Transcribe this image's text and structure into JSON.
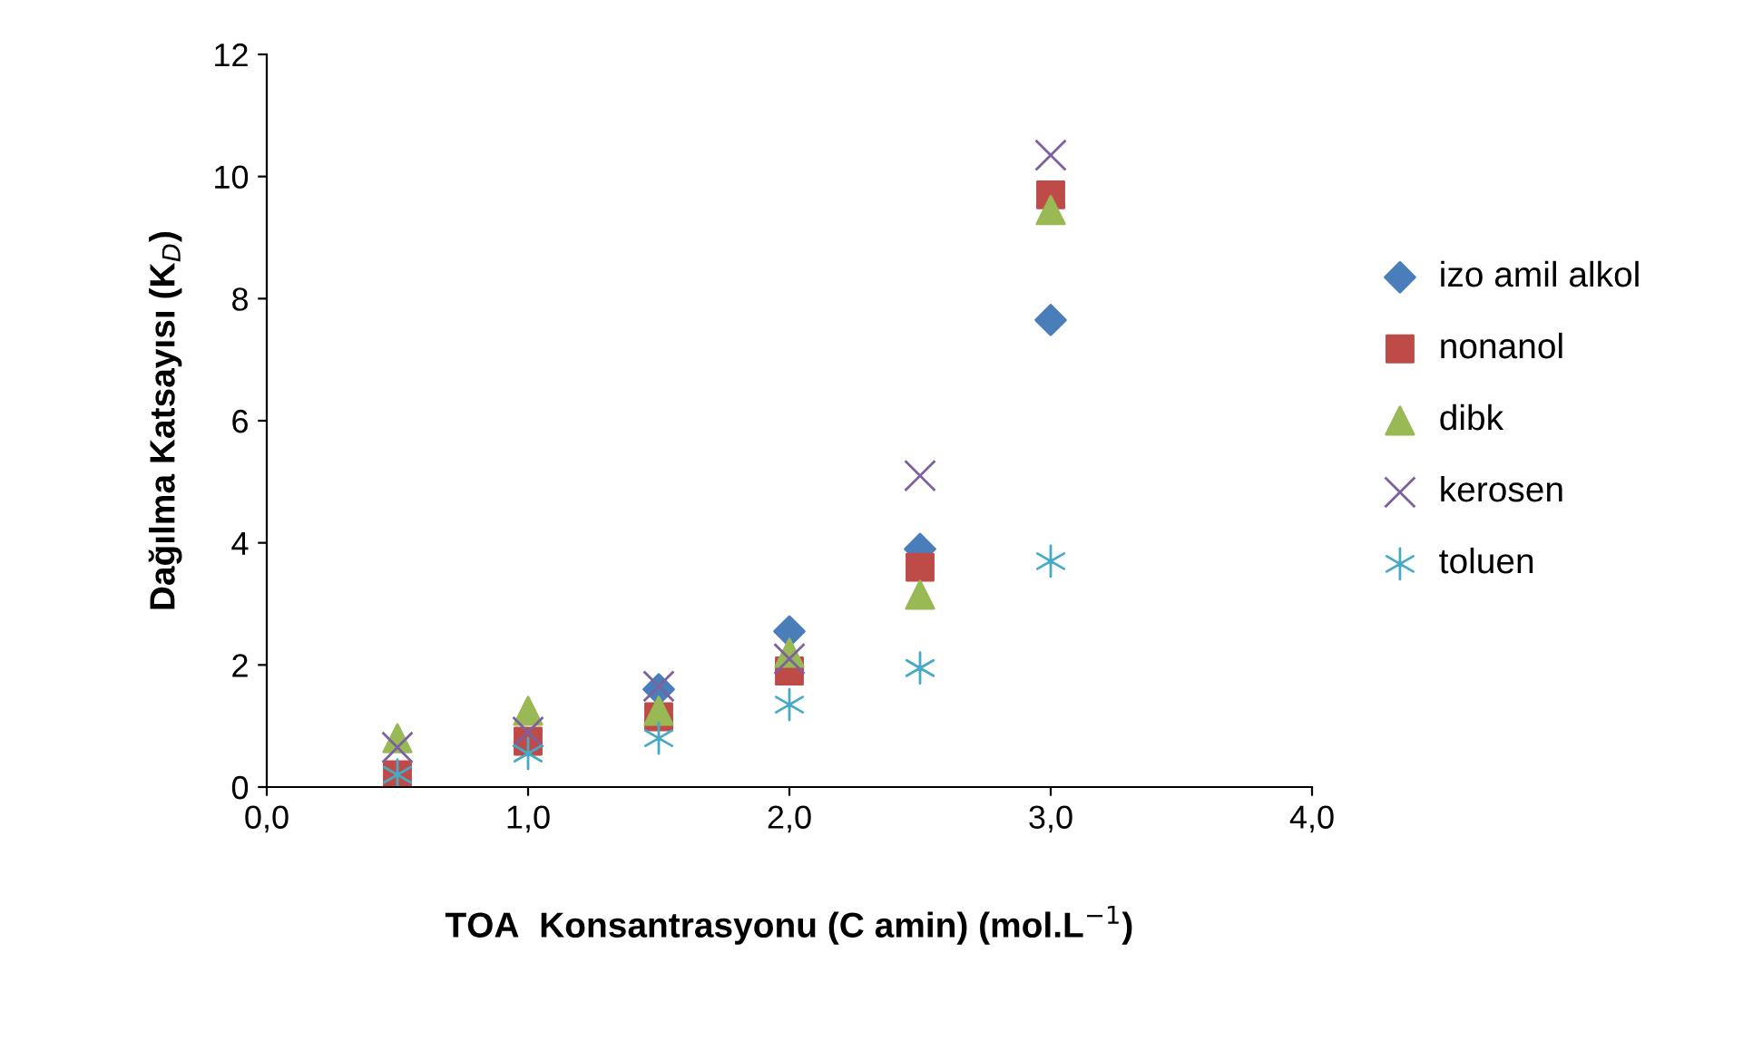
{
  "chart_data": {
    "type": "scatter",
    "xlabel": "TOA  Konsantrasyonu (C amin) (mol.L$^{−1}$)",
    "ylabel": "Dağılma Katsayısı (K$_{D}$)",
    "x": [
      0.5,
      1.0,
      1.5,
      2.0,
      2.5,
      3.0
    ],
    "series": [
      {
        "name": "izo amil alkol",
        "color": "#4a7ebb",
        "marker": "diamond",
        "values": [
          null,
          null,
          1.6,
          2.55,
          3.9,
          7.65
        ]
      },
      {
        "name": "nonanol",
        "color": "#be4b48",
        "marker": "square",
        "values": [
          0.2,
          0.75,
          1.15,
          1.9,
          3.6,
          9.7
        ]
      },
      {
        "name": "dibk",
        "color": "#98b954",
        "marker": "triangle",
        "values": [
          0.8,
          1.25,
          1.25,
          2.2,
          3.15,
          9.45
        ]
      },
      {
        "name": "kerosen",
        "color": "#7d60a0",
        "marker": "cross",
        "values": [
          0.65,
          0.9,
          1.65,
          2.1,
          5.1,
          10.35
        ]
      },
      {
        "name": "toluen",
        "color": "#46aac5",
        "values": [
          0.2,
          0.55,
          0.8,
          1.35,
          1.95,
          3.7
        ]
      }
    ],
    "xlim": [
      0,
      4
    ],
    "xticks": [
      {
        "value": 0,
        "label": "0,0"
      },
      {
        "value": 1,
        "label": "1,0"
      },
      {
        "value": 2,
        "label": "2,0"
      },
      {
        "value": 3,
        "label": "3,0"
      },
      {
        "value": 4,
        "label": "4,0"
      }
    ],
    "ylim": [
      0,
      12
    ],
    "yticks": [
      0,
      2,
      4,
      6,
      8,
      10,
      12
    ],
    "grid": false,
    "legend": "right"
  }
}
